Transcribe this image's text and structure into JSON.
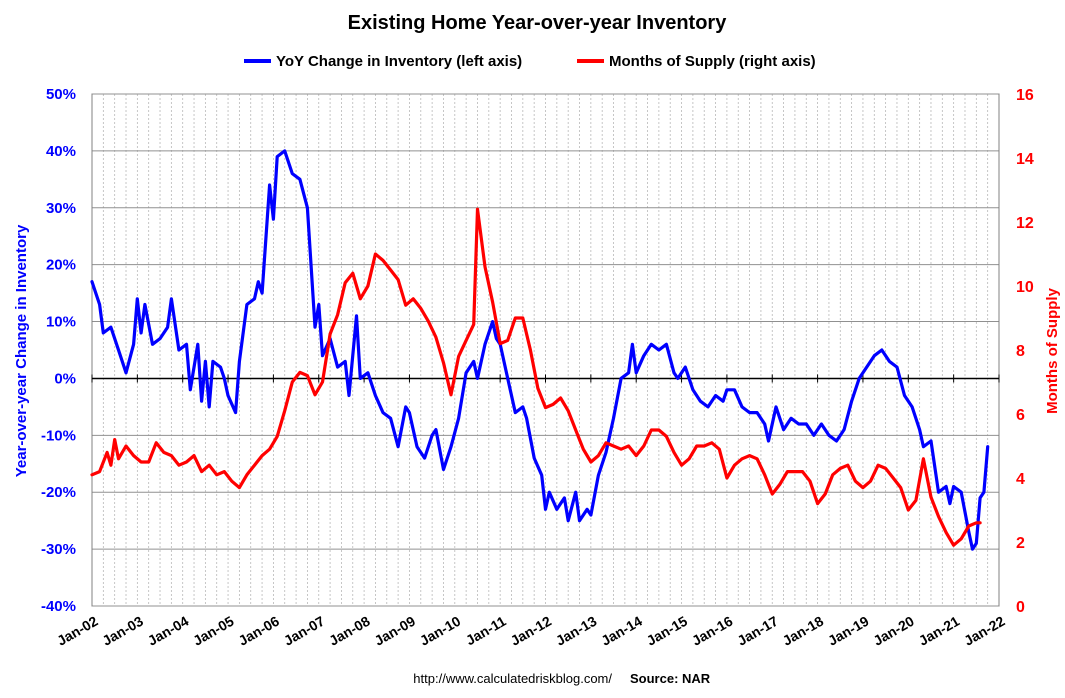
{
  "chart_data": {
    "type": "line",
    "title": "Existing Home Year-over-year Inventory",
    "legend_placement": "top-center",
    "grid": true,
    "x_ticks": [
      "Jan-02",
      "Jan-03",
      "Jan-04",
      "Jan-05",
      "Jan-06",
      "Jan-07",
      "Jan-08",
      "Jan-09",
      "Jan-10",
      "Jan-11",
      "Jan-12",
      "Jan-13",
      "Jan-14",
      "Jan-15",
      "Jan-16",
      "Jan-17",
      "Jan-18",
      "Jan-19",
      "Jan-20",
      "Jan-21",
      "Jan-22"
    ],
    "x_range": [
      "2002-01",
      "2022-01"
    ],
    "left_axis": {
      "label": "Year-over-year Change in Inventory",
      "ylim": [
        -40,
        50
      ],
      "tick_values": [
        -40,
        -30,
        -20,
        -10,
        0,
        10,
        20,
        30,
        40,
        50
      ],
      "tick_labels": [
        "-40%",
        "-30%",
        "-20%",
        "-10%",
        "0%",
        "10%",
        "20%",
        "30%",
        "40%",
        "50%"
      ],
      "color": "#0000ff"
    },
    "right_axis": {
      "label": "Months of Supply",
      "ylim": [
        0,
        16
      ],
      "tick_values": [
        0,
        2,
        4,
        6,
        8,
        10,
        12,
        14,
        16
      ],
      "tick_labels": [
        "0",
        "2",
        "4",
        "6",
        "8",
        "10",
        "12",
        "14",
        "16"
      ],
      "color": "#ff0000"
    },
    "series": [
      {
        "name": "YoY Change in Inventory (left axis)",
        "axis": "left",
        "color": "#0000ff",
        "points": [
          [
            "2002-01",
            17
          ],
          [
            "2002-03",
            13
          ],
          [
            "2002-04",
            8
          ],
          [
            "2002-06",
            9
          ],
          [
            "2002-08",
            5
          ],
          [
            "2002-10",
            1
          ],
          [
            "2002-12",
            6
          ],
          [
            "2003-01",
            14
          ],
          [
            "2003-02",
            8
          ],
          [
            "2003-03",
            13
          ],
          [
            "2003-05",
            6
          ],
          [
            "2003-07",
            7
          ],
          [
            "2003-09",
            9
          ],
          [
            "2003-10",
            14
          ],
          [
            "2003-12",
            5
          ],
          [
            "2004-02",
            6
          ],
          [
            "2004-03",
            -2
          ],
          [
            "2004-05",
            6
          ],
          [
            "2004-06",
            -4
          ],
          [
            "2004-07",
            3
          ],
          [
            "2004-08",
            -5
          ],
          [
            "2004-09",
            3
          ],
          [
            "2004-11",
            2
          ],
          [
            "2004-12",
            0
          ],
          [
            "2005-01",
            -3
          ],
          [
            "2005-03",
            -6
          ],
          [
            "2005-04",
            3
          ],
          [
            "2005-06",
            13
          ],
          [
            "2005-08",
            14
          ],
          [
            "2005-09",
            17
          ],
          [
            "2005-10",
            15
          ],
          [
            "2005-12",
            34
          ],
          [
            "2006-01",
            28
          ],
          [
            "2006-02",
            39
          ],
          [
            "2006-04",
            40
          ],
          [
            "2006-06",
            36
          ],
          [
            "2006-08",
            35
          ],
          [
            "2006-10",
            30
          ],
          [
            "2006-12",
            9
          ],
          [
            "2007-01",
            13
          ],
          [
            "2007-02",
            4
          ],
          [
            "2007-04",
            7
          ],
          [
            "2007-06",
            2
          ],
          [
            "2007-08",
            3
          ],
          [
            "2007-09",
            -3
          ],
          [
            "2007-11",
            11
          ],
          [
            "2007-12",
            0
          ],
          [
            "2008-02",
            1
          ],
          [
            "2008-04",
            -3
          ],
          [
            "2008-06",
            -6
          ],
          [
            "2008-08",
            -7
          ],
          [
            "2008-10",
            -12
          ],
          [
            "2008-12",
            -5
          ],
          [
            "2009-01",
            -6
          ],
          [
            "2009-03",
            -12
          ],
          [
            "2009-05",
            -14
          ],
          [
            "2009-07",
            -10
          ],
          [
            "2009-08",
            -9
          ],
          [
            "2009-10",
            -16
          ],
          [
            "2009-12",
            -12
          ],
          [
            "2010-02",
            -7
          ],
          [
            "2010-04",
            1
          ],
          [
            "2010-06",
            3
          ],
          [
            "2010-07",
            0
          ],
          [
            "2010-09",
            6
          ],
          [
            "2010-11",
            10
          ],
          [
            "2010-12",
            7
          ],
          [
            "2011-01",
            6
          ],
          [
            "2011-03",
            0
          ],
          [
            "2011-05",
            -6
          ],
          [
            "2011-07",
            -5
          ],
          [
            "2011-08",
            -7
          ],
          [
            "2011-10",
            -14
          ],
          [
            "2011-12",
            -17
          ],
          [
            "2012-01",
            -23
          ],
          [
            "2012-02",
            -20
          ],
          [
            "2012-04",
            -23
          ],
          [
            "2012-06",
            -21
          ],
          [
            "2012-07",
            -25
          ],
          [
            "2012-09",
            -20
          ],
          [
            "2012-10",
            -25
          ],
          [
            "2012-12",
            -23
          ],
          [
            "2013-01",
            -24
          ],
          [
            "2013-03",
            -17
          ],
          [
            "2013-05",
            -13
          ],
          [
            "2013-07",
            -7
          ],
          [
            "2013-09",
            0
          ],
          [
            "2013-11",
            1
          ],
          [
            "2013-12",
            6
          ],
          [
            "2014-01",
            1
          ],
          [
            "2014-03",
            4
          ],
          [
            "2014-05",
            6
          ],
          [
            "2014-07",
            5
          ],
          [
            "2014-09",
            6
          ],
          [
            "2014-11",
            1
          ],
          [
            "2014-12",
            0
          ],
          [
            "2015-02",
            2
          ],
          [
            "2015-04",
            -2
          ],
          [
            "2015-06",
            -4
          ],
          [
            "2015-08",
            -5
          ],
          [
            "2015-10",
            -3
          ],
          [
            "2015-12",
            -4
          ],
          [
            "2016-01",
            -2
          ],
          [
            "2016-03",
            -2
          ],
          [
            "2016-05",
            -5
          ],
          [
            "2016-07",
            -6
          ],
          [
            "2016-09",
            -6
          ],
          [
            "2016-11",
            -8
          ],
          [
            "2016-12",
            -11
          ],
          [
            "2017-02",
            -5
          ],
          [
            "2017-04",
            -9
          ],
          [
            "2017-06",
            -7
          ],
          [
            "2017-08",
            -8
          ],
          [
            "2017-10",
            -8
          ],
          [
            "2017-12",
            -10
          ],
          [
            "2018-02",
            -8
          ],
          [
            "2018-04",
            -10
          ],
          [
            "2018-06",
            -11
          ],
          [
            "2018-08",
            -9
          ],
          [
            "2018-10",
            -4
          ],
          [
            "2018-12",
            0
          ],
          [
            "2019-02",
            2
          ],
          [
            "2019-04",
            4
          ],
          [
            "2019-06",
            5
          ],
          [
            "2019-08",
            3
          ],
          [
            "2019-10",
            2
          ],
          [
            "2019-12",
            -3
          ],
          [
            "2020-02",
            -5
          ],
          [
            "2020-04",
            -9
          ],
          [
            "2020-05",
            -12
          ],
          [
            "2020-07",
            -11
          ],
          [
            "2020-09",
            -20
          ],
          [
            "2020-11",
            -19
          ],
          [
            "2020-12",
            -22
          ],
          [
            "2021-01",
            -19
          ],
          [
            "2021-03",
            -20
          ],
          [
            "2021-05",
            -27
          ],
          [
            "2021-06",
            -30
          ],
          [
            "2021-07",
            -29
          ],
          [
            "2021-08",
            -21
          ],
          [
            "2021-09",
            -20
          ],
          [
            "2021-10",
            -12
          ]
        ]
      },
      {
        "name": "Months of Supply (right axis)",
        "axis": "right",
        "color": "#ff0000",
        "points": [
          [
            "2002-01",
            4.1
          ],
          [
            "2002-03",
            4.2
          ],
          [
            "2002-05",
            4.8
          ],
          [
            "2002-06",
            4.4
          ],
          [
            "2002-07",
            5.2
          ],
          [
            "2002-08",
            4.6
          ],
          [
            "2002-10",
            5.0
          ],
          [
            "2002-12",
            4.7
          ],
          [
            "2003-02",
            4.5
          ],
          [
            "2003-04",
            4.5
          ],
          [
            "2003-06",
            5.1
          ],
          [
            "2003-08",
            4.8
          ],
          [
            "2003-10",
            4.7
          ],
          [
            "2003-12",
            4.4
          ],
          [
            "2004-02",
            4.5
          ],
          [
            "2004-04",
            4.7
          ],
          [
            "2004-06",
            4.2
          ],
          [
            "2004-08",
            4.4
          ],
          [
            "2004-10",
            4.1
          ],
          [
            "2004-12",
            4.2
          ],
          [
            "2005-02",
            3.9
          ],
          [
            "2005-04",
            3.7
          ],
          [
            "2005-06",
            4.1
          ],
          [
            "2005-08",
            4.4
          ],
          [
            "2005-10",
            4.7
          ],
          [
            "2005-12",
            4.9
          ],
          [
            "2006-02",
            5.3
          ],
          [
            "2006-04",
            6.1
          ],
          [
            "2006-06",
            7.0
          ],
          [
            "2006-08",
            7.3
          ],
          [
            "2006-10",
            7.2
          ],
          [
            "2006-12",
            6.6
          ],
          [
            "2007-02",
            7.0
          ],
          [
            "2007-04",
            8.5
          ],
          [
            "2007-06",
            9.1
          ],
          [
            "2007-08",
            10.1
          ],
          [
            "2007-10",
            10.4
          ],
          [
            "2007-12",
            9.6
          ],
          [
            "2008-02",
            10.0
          ],
          [
            "2008-04",
            11.0
          ],
          [
            "2008-06",
            10.8
          ],
          [
            "2008-08",
            10.5
          ],
          [
            "2008-10",
            10.2
          ],
          [
            "2008-12",
            9.4
          ],
          [
            "2009-02",
            9.6
          ],
          [
            "2009-04",
            9.3
          ],
          [
            "2009-06",
            8.9
          ],
          [
            "2009-08",
            8.4
          ],
          [
            "2009-10",
            7.6
          ],
          [
            "2009-12",
            6.6
          ],
          [
            "2010-02",
            7.8
          ],
          [
            "2010-04",
            8.3
          ],
          [
            "2010-06",
            8.8
          ],
          [
            "2010-07",
            12.4
          ],
          [
            "2010-09",
            10.6
          ],
          [
            "2010-11",
            9.5
          ],
          [
            "2011-01",
            8.2
          ],
          [
            "2011-03",
            8.3
          ],
          [
            "2011-05",
            9.0
          ],
          [
            "2011-07",
            9.0
          ],
          [
            "2011-09",
            8.0
          ],
          [
            "2011-11",
            6.8
          ],
          [
            "2012-01",
            6.2
          ],
          [
            "2012-03",
            6.3
          ],
          [
            "2012-05",
            6.5
          ],
          [
            "2012-07",
            6.1
          ],
          [
            "2012-09",
            5.5
          ],
          [
            "2012-11",
            4.9
          ],
          [
            "2013-01",
            4.5
          ],
          [
            "2013-03",
            4.7
          ],
          [
            "2013-05",
            5.1
          ],
          [
            "2013-07",
            5.0
          ],
          [
            "2013-09",
            4.9
          ],
          [
            "2013-11",
            5.0
          ],
          [
            "2014-01",
            4.7
          ],
          [
            "2014-03",
            5.0
          ],
          [
            "2014-05",
            5.5
          ],
          [
            "2014-07",
            5.5
          ],
          [
            "2014-09",
            5.3
          ],
          [
            "2014-11",
            4.8
          ],
          [
            "2015-01",
            4.4
          ],
          [
            "2015-03",
            4.6
          ],
          [
            "2015-05",
            5.0
          ],
          [
            "2015-07",
            5.0
          ],
          [
            "2015-09",
            5.1
          ],
          [
            "2015-11",
            4.9
          ],
          [
            "2016-01",
            4.0
          ],
          [
            "2016-03",
            4.4
          ],
          [
            "2016-05",
            4.6
          ],
          [
            "2016-07",
            4.7
          ],
          [
            "2016-09",
            4.6
          ],
          [
            "2016-11",
            4.1
          ],
          [
            "2017-01",
            3.5
          ],
          [
            "2017-03",
            3.8
          ],
          [
            "2017-05",
            4.2
          ],
          [
            "2017-07",
            4.2
          ],
          [
            "2017-09",
            4.2
          ],
          [
            "2017-11",
            3.9
          ],
          [
            "2018-01",
            3.2
          ],
          [
            "2018-03",
            3.5
          ],
          [
            "2018-05",
            4.1
          ],
          [
            "2018-07",
            4.3
          ],
          [
            "2018-09",
            4.4
          ],
          [
            "2018-11",
            3.9
          ],
          [
            "2019-01",
            3.7
          ],
          [
            "2019-03",
            3.9
          ],
          [
            "2019-05",
            4.4
          ],
          [
            "2019-07",
            4.3
          ],
          [
            "2019-09",
            4.0
          ],
          [
            "2019-11",
            3.7
          ],
          [
            "2020-01",
            3.0
          ],
          [
            "2020-03",
            3.3
          ],
          [
            "2020-05",
            4.6
          ],
          [
            "2020-07",
            3.4
          ],
          [
            "2020-09",
            2.8
          ],
          [
            "2020-11",
            2.3
          ],
          [
            "2021-01",
            1.9
          ],
          [
            "2021-03",
            2.1
          ],
          [
            "2021-05",
            2.5
          ],
          [
            "2021-07",
            2.6
          ],
          [
            "2021-08",
            2.6
          ]
        ]
      }
    ]
  },
  "footer": {
    "url": "http://www.calculatedriskblog.com/",
    "source": "Source: NAR"
  }
}
